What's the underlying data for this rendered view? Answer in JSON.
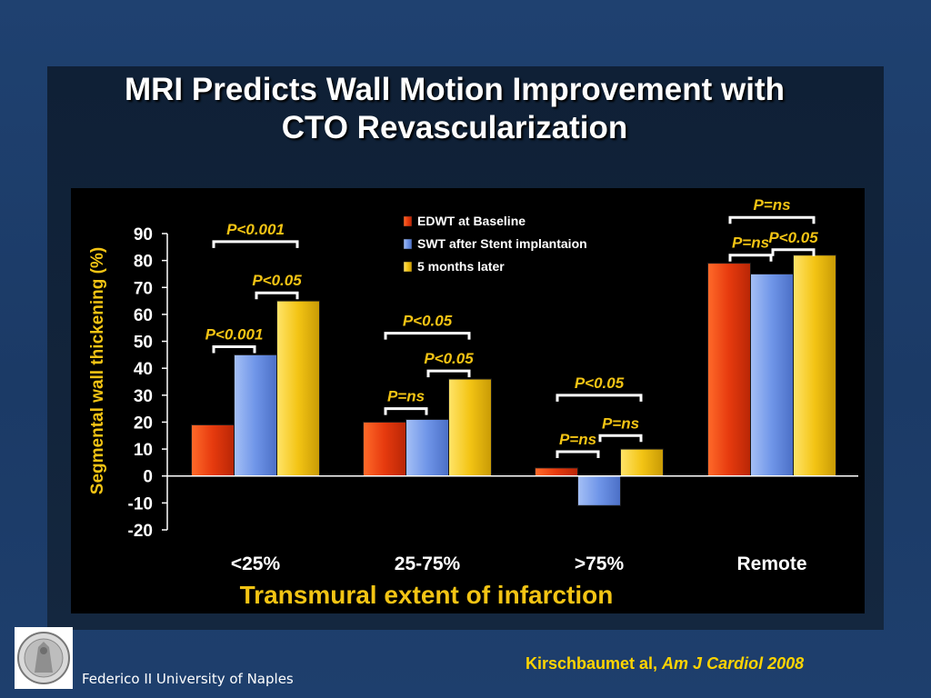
{
  "slide": {
    "title_line1": "MRI Predicts Wall Motion Improvement with",
    "title_line2": "CTO Revascularization",
    "footer_institution": "Federico II University of Naples",
    "citation_authors": "Kirschbaumet al, ",
    "citation_journal": "Am J Cardiol 2008",
    "logo": "university-seal-icon"
  },
  "colors": {
    "bar_baseline": "#e63a0e",
    "bar_stent": "#6f95e8",
    "bar_5months": "#f3c414",
    "axis_label": "#f3c414",
    "annotation": "#f3c414"
  },
  "chart_data": {
    "type": "bar",
    "ylabel": "Segmental wall thickening (%)",
    "xlabel": "Transmural extent of infarction",
    "ylim": [
      -20,
      90
    ],
    "yticks": [
      90,
      80,
      70,
      60,
      50,
      40,
      30,
      20,
      10,
      0,
      -10,
      -20
    ],
    "categories": [
      "<25%",
      "25-75%",
      ">75%",
      "Remote"
    ],
    "legend_position": "top-center",
    "series": [
      {
        "name": "EDWT at Baseline",
        "values": [
          19,
          20,
          3,
          79
        ]
      },
      {
        "name": "SWT after Stent implantaion",
        "values": [
          45,
          21,
          -11,
          75
        ]
      },
      {
        "name": "5 months later",
        "values": [
          65,
          36,
          10,
          82
        ]
      }
    ],
    "annotations": [
      {
        "group": 0,
        "from": 0,
        "to": 2,
        "text": "P<0.001",
        "y": 87
      },
      {
        "group": 0,
        "from": 1,
        "to": 2,
        "text": "P<0.05",
        "y": 68
      },
      {
        "group": 0,
        "from": 0,
        "to": 1,
        "text": "P<0.001",
        "y": 48
      },
      {
        "group": 1,
        "from": 0,
        "to": 2,
        "text": "P<0.05",
        "y": 53
      },
      {
        "group": 1,
        "from": 1,
        "to": 2,
        "text": "P<0.05",
        "y": 39
      },
      {
        "group": 1,
        "from": 0,
        "to": 1,
        "text": "P=ns",
        "y": 25
      },
      {
        "group": 2,
        "from": 0,
        "to": 2,
        "text": "P<0.05",
        "y": 30
      },
      {
        "group": 2,
        "from": 1,
        "to": 2,
        "text": "P=ns",
        "y": 15
      },
      {
        "group": 2,
        "from": 0,
        "to": 1,
        "text": "P=ns",
        "y": 9
      },
      {
        "group": 3,
        "from": 0,
        "to": 2,
        "text": "P=ns",
        "y": 96
      },
      {
        "group": 3,
        "from": 0,
        "to": 1,
        "text": "P=ns",
        "y": 82
      },
      {
        "group": 3,
        "from": 1,
        "to": 2,
        "text": "P<0.05",
        "y": 84
      }
    ]
  }
}
